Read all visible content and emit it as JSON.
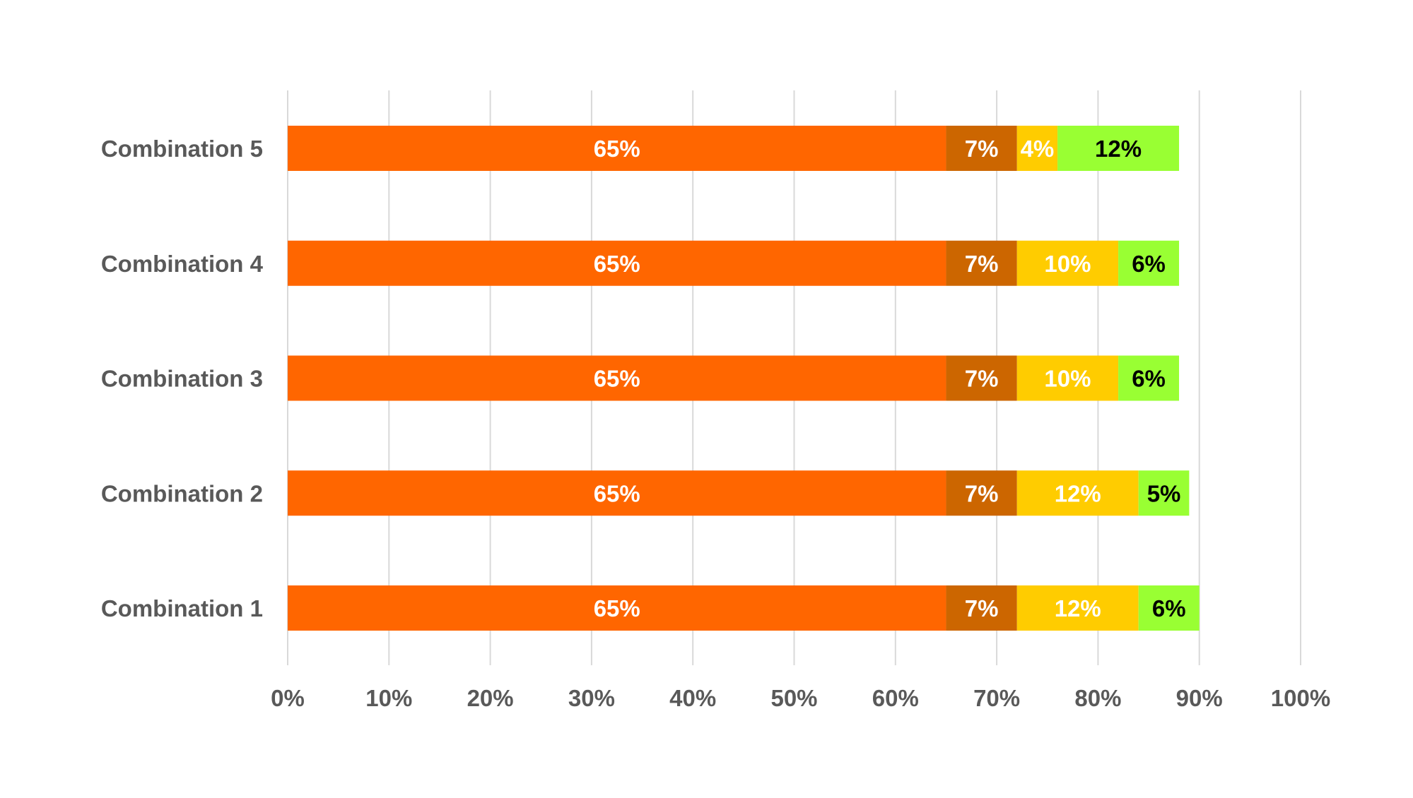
{
  "chart_data": {
    "type": "bar",
    "orientation": "horizontal",
    "stacked": true,
    "title": "",
    "xlabel": "",
    "ylabel": "",
    "xlim": [
      0,
      100
    ],
    "x_ticks": [
      "0%",
      "10%",
      "20%",
      "30%",
      "40%",
      "50%",
      "60%",
      "70%",
      "80%",
      "90%",
      "100%"
    ],
    "categories": [
      "Combination 5",
      "Combination 4",
      "Combination 3",
      "Combination 2",
      "Combination 1"
    ],
    "series": [
      {
        "color": "#ff6600",
        "label_color": "#ffffff",
        "values": [
          65,
          65,
          65,
          65,
          65
        ],
        "labels": [
          "65%",
          "65%",
          "65%",
          "65%",
          "65%"
        ]
      },
      {
        "color": "#cc6600",
        "label_color": "#ffffff",
        "values": [
          7,
          7,
          7,
          7,
          7
        ],
        "labels": [
          "7%",
          "7%",
          "7%",
          "7%",
          "7%"
        ]
      },
      {
        "color": "#ffcc00",
        "label_color": "#ffffff",
        "values": [
          4,
          10,
          10,
          12,
          12
        ],
        "labels": [
          "4%",
          "10%",
          "10%",
          "12%",
          "12%"
        ]
      },
      {
        "color": "#99ff33",
        "label_color": "#000000",
        "values": [
          12,
          6,
          6,
          5,
          6
        ],
        "labels": [
          "12%",
          "6%",
          "6%",
          "5%",
          "6%"
        ]
      }
    ],
    "grid": true,
    "legend": "none",
    "colors": {
      "gridline": "#d9d9d9",
      "axis_text": "#595959"
    }
  }
}
